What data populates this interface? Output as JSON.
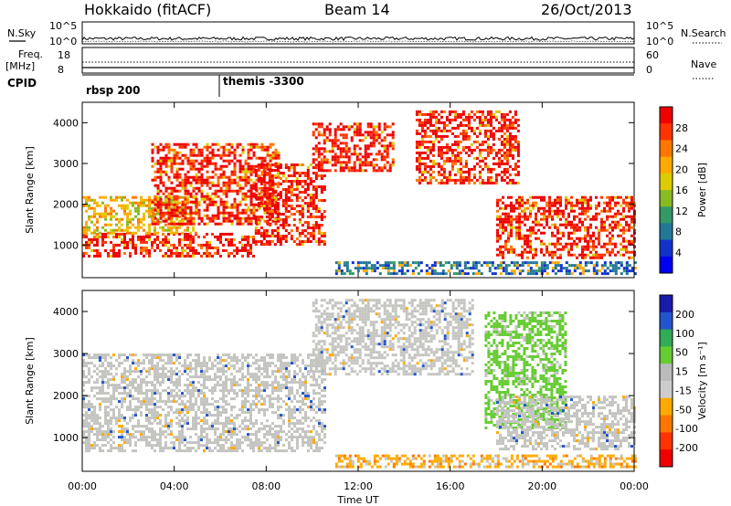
{
  "header": {
    "station": "Hokkaido (fitACF)",
    "beam": "Beam 14",
    "date": "26/Oct/2013"
  },
  "summary": {
    "nsky_label": "N.Sky",
    "nsearch_label": "N.Search",
    "freq_label_1": "Freq.",
    "freq_label_2": "[MHz]",
    "nave_label": "Nave",
    "cpid_label": "CPID",
    "nsky_ticks": [
      "10^5",
      "10^0"
    ],
    "nsearch_ticks": [
      "10^5",
      "10^0"
    ],
    "freq_ticks": [
      "18",
      "8"
    ],
    "nave_ticks": [
      "60",
      "0"
    ],
    "cpid_segments": [
      "rbsp 200",
      "themis -3300"
    ]
  },
  "chart_data": [
    {
      "type": "heatmap",
      "name": "power",
      "ylabel": "Slant Range [km]",
      "xlabel": "Time UT",
      "x_ticks": [
        "00:00",
        "04:00",
        "08:00",
        "12:00",
        "16:00",
        "20:00",
        "00:00"
      ],
      "x_range_hours": [
        0,
        24
      ],
      "y_ticks": [
        1000,
        2000,
        3000,
        4000
      ],
      "ylim": [
        200,
        4500
      ],
      "colorbar": {
        "label": "Power [dB]",
        "ticks": [
          "28",
          "24",
          "20",
          "16",
          "12",
          "8",
          "4"
        ],
        "colors": [
          "#ee0000",
          "#ff3300",
          "#ff7700",
          "#ffaa00",
          "#ddcc00",
          "#88bb22",
          "#339966",
          "#227799",
          "#1133cc",
          "#0000ee"
        ]
      },
      "regions_hours_km": [
        {
          "t0": 0,
          "t1": 7.5,
          "r0": 700,
          "r1": 1300,
          "level": "high"
        },
        {
          "t0": 0,
          "t1": 5,
          "r0": 1300,
          "r1": 2200,
          "level": "mid"
        },
        {
          "t0": 3,
          "t1": 8.5,
          "r0": 1500,
          "r1": 3500,
          "level": "high"
        },
        {
          "t0": 7.5,
          "t1": 10.5,
          "r0": 1000,
          "r1": 3000,
          "level": "high"
        },
        {
          "t0": 10,
          "t1": 13.5,
          "r0": 2800,
          "r1": 4000,
          "level": "high"
        },
        {
          "t0": 14.5,
          "t1": 19,
          "r0": 2500,
          "r1": 4300,
          "level": "high"
        },
        {
          "t0": 18,
          "t1": 24,
          "r0": 700,
          "r1": 2200,
          "level": "high"
        },
        {
          "t0": 11,
          "t1": 24,
          "r0": 300,
          "r1": 600,
          "level": "low"
        }
      ]
    },
    {
      "type": "heatmap",
      "name": "velocity",
      "ylabel": "Slant Range [km]",
      "xlabel": "Time UT",
      "x_ticks": [
        "00:00",
        "04:00",
        "08:00",
        "12:00",
        "16:00",
        "20:00",
        "00:00"
      ],
      "x_range_hours": [
        0,
        24
      ],
      "y_ticks": [
        1000,
        2000,
        3000,
        4000
      ],
      "ylim": [
        200,
        4500
      ],
      "colorbar": {
        "label": "Velocity [m s⁻¹]",
        "ticks": [
          "200",
          "100",
          "50",
          "15",
          "-15",
          "-50",
          "-100",
          "-200"
        ],
        "colors": [
          "#1a1aaa",
          "#2255cc",
          "#33aa55",
          "#66cc33",
          "#bbbbbb",
          "#cccccc",
          "#ffaa00",
          "#ff7700",
          "#ff3300",
          "#ee0000"
        ]
      },
      "regions_hours_km": [
        {
          "t0": 0,
          "t1": 10.5,
          "r0": 700,
          "r1": 3000,
          "level": "ground"
        },
        {
          "t0": 10,
          "t1": 17,
          "r0": 2500,
          "r1": 4300,
          "level": "ground"
        },
        {
          "t0": 17.5,
          "t1": 21,
          "r0": 1200,
          "r1": 4000,
          "level": "green"
        },
        {
          "t0": 18,
          "t1": 24,
          "r0": 700,
          "r1": 2000,
          "level": "ground"
        },
        {
          "t0": 11,
          "t1": 24,
          "r0": 300,
          "r1": 600,
          "level": "orange"
        }
      ]
    }
  ]
}
